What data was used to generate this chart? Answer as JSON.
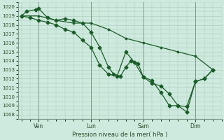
{
  "background_color": "#ceeade",
  "grid_color": "#a8c8b8",
  "line_color": "#1a5c28",
  "ylabel_text": "Pression niveau de la mer( hPa )",
  "ylim": [
    1007.5,
    1020.5
  ],
  "yticks": [
    1008,
    1009,
    1010,
    1011,
    1012,
    1013,
    1014,
    1015,
    1016,
    1017,
    1018,
    1019,
    1020
  ],
  "xtick_labels": [
    "Ven",
    "Lun",
    "Sam",
    "Dim"
  ],
  "xtick_positions": [
    1,
    4,
    7,
    10
  ],
  "vlines": [
    1,
    4,
    7,
    10
  ],
  "line1_x": [
    0,
    1,
    2,
    3,
    4,
    5,
    6,
    7,
    8,
    9,
    10,
    11
  ],
  "line1_y": [
    1019.0,
    1019.0,
    1018.5,
    1018.2,
    1018.2,
    1017.5,
    1016.5,
    1016.0,
    1015.5,
    1015.0,
    1014.5,
    1013.0
  ],
  "line2_x": [
    0,
    0.3,
    0.8,
    1.0,
    1.5,
    2.0,
    2.5,
    3.0,
    3.5,
    4.0,
    4.5,
    5.0,
    5.3,
    5.7,
    6.0,
    6.3,
    6.7,
    7.0,
    7.5,
    8.0,
    8.5,
    9.0,
    9.5,
    10.0,
    10.5,
    11.0
  ],
  "line2_y": [
    1019.0,
    1019.5,
    1019.7,
    1019.8,
    1018.8,
    1018.5,
    1018.7,
    1018.5,
    1018.2,
    1017.2,
    1015.5,
    1013.3,
    1012.5,
    1012.3,
    1013.3,
    1014.0,
    1013.7,
    1012.2,
    1011.5,
    1011.2,
    1010.3,
    1009.0,
    1008.9,
    1011.7,
    1012.0,
    1013.0
  ],
  "line3_x": [
    0,
    0.5,
    1.0,
    1.5,
    2.0,
    2.5,
    3.0,
    3.5,
    4.0,
    4.5,
    5.0,
    5.5,
    6.0,
    6.5,
    7.0,
    7.5,
    8.0,
    8.5,
    9.0,
    9.5,
    10.0,
    10.5,
    11.0
  ],
  "line3_y": [
    1019.0,
    1018.8,
    1018.5,
    1018.3,
    1018.0,
    1017.5,
    1017.2,
    1016.3,
    1015.5,
    1013.5,
    1012.5,
    1012.3,
    1015.0,
    1013.8,
    1012.2,
    1011.8,
    1010.5,
    1009.0,
    1009.0,
    1008.3,
    1011.7,
    1012.0,
    1013.0
  ],
  "xlim": [
    -0.2,
    11.5
  ]
}
